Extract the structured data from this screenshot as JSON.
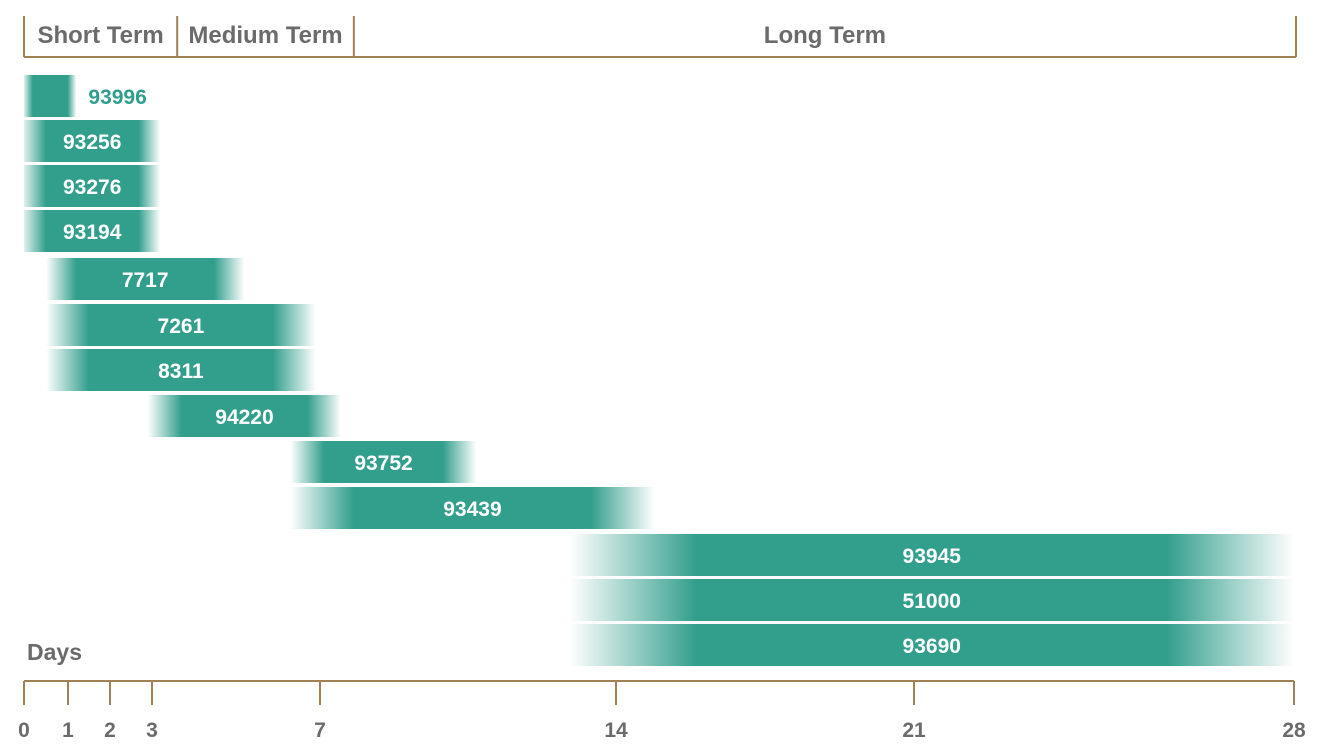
{
  "chart_data": {
    "type": "bar",
    "orientation": "horizontal-range",
    "xlabel": "Days",
    "x_ticks": [
      0,
      1,
      2,
      3,
      7,
      14,
      21,
      28
    ],
    "xlim": [
      0,
      28
    ],
    "term_bands": [
      {
        "label": "Short Term",
        "start": 0,
        "end": 3.6
      },
      {
        "label": "Medium Term",
        "start": 3.6,
        "end": 7.8
      },
      {
        "label": "Long Term",
        "start": 7.8,
        "end": 28
      }
    ],
    "bars": [
      {
        "label": "93996",
        "start": 0,
        "end": 1.2,
        "fade": 0.2,
        "label_outside": true
      },
      {
        "label": "93256",
        "start": 0,
        "end": 3.2,
        "fade": 0.5
      },
      {
        "label": "93276",
        "start": 0,
        "end": 3.2,
        "fade": 0.5
      },
      {
        "label": "93194",
        "start": 0,
        "end": 3.2,
        "fade": 0.5
      },
      {
        "label": "7717",
        "start": 0.5,
        "end": 5.2,
        "fade": 0.7
      },
      {
        "label": "7261",
        "start": 0.5,
        "end": 6.9,
        "fade": 1.0
      },
      {
        "label": "8311",
        "start": 0.5,
        "end": 6.9,
        "fade": 1.0
      },
      {
        "label": "94220",
        "start": 2.9,
        "end": 7.5,
        "fade": 0.8
      },
      {
        "label": "93752",
        "start": 6.3,
        "end": 10.7,
        "fade": 0.8
      },
      {
        "label": "93439",
        "start": 6.3,
        "end": 14.9,
        "fade": 1.5
      },
      {
        "label": "93945",
        "start": 12.9,
        "end": 28,
        "fade": 3.0
      },
      {
        "label": "51000",
        "start": 12.9,
        "end": 28,
        "fade": 3.0
      },
      {
        "label": "93690",
        "start": 12.9,
        "end": 28,
        "fade": 3.0
      }
    ]
  },
  "colors": {
    "bar": "#329e8c",
    "axis": "#a08055",
    "text": "#6b6b6b",
    "outside_label": "#2f9e8c"
  }
}
